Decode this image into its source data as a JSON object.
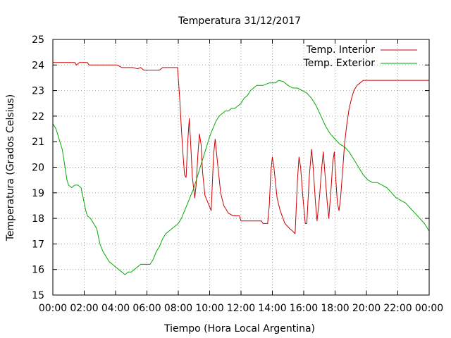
{
  "chart_data": {
    "type": "line",
    "title": "Temperatura 31/12/2017",
    "xlabel": "Tiempo (Hora Local Argentina)",
    "ylabel": "Temperatura (Grados Celsius)",
    "xlim": [
      0,
      24
    ],
    "ylim": [
      15,
      25
    ],
    "grid": true,
    "legend_position": "top-right",
    "x_ticks": [
      "00:00",
      "02:00",
      "04:00",
      "06:00",
      "08:00",
      "10:00",
      "12:00",
      "14:00",
      "16:00",
      "18:00",
      "20:00",
      "22:00",
      "00:00"
    ],
    "y_ticks": [
      "15",
      "16",
      "17",
      "18",
      "19",
      "20",
      "21",
      "22",
      "23",
      "24",
      "25"
    ],
    "series": [
      {
        "name": "Temp. Interior",
        "color": "#cc0000",
        "points": [
          [
            0,
            24.1
          ],
          [
            1.4,
            24.1
          ],
          [
            1.5,
            24.0
          ],
          [
            1.7,
            24.1
          ],
          [
            2.2,
            24.1
          ],
          [
            2.3,
            24.0
          ],
          [
            4.1,
            24.0
          ],
          [
            4.4,
            23.9
          ],
          [
            5.1,
            23.9
          ],
          [
            5.4,
            23.85
          ],
          [
            5.6,
            23.9
          ],
          [
            5.8,
            23.8
          ],
          [
            6.8,
            23.8
          ],
          [
            7.0,
            23.9
          ],
          [
            7.7,
            23.9
          ],
          [
            7.95,
            23.9
          ],
          [
            8.0,
            23.5
          ],
          [
            8.1,
            22.6
          ],
          [
            8.2,
            21.5
          ],
          [
            8.3,
            20.5
          ],
          [
            8.4,
            19.7
          ],
          [
            8.5,
            19.6
          ],
          [
            8.6,
            21.0
          ],
          [
            8.7,
            21.9
          ],
          [
            8.8,
            20.8
          ],
          [
            8.9,
            19.6
          ],
          [
            9.05,
            18.8
          ],
          [
            9.15,
            19.4
          ],
          [
            9.25,
            20.5
          ],
          [
            9.35,
            21.3
          ],
          [
            9.45,
            20.9
          ],
          [
            9.55,
            19.8
          ],
          [
            9.7,
            18.9
          ],
          [
            9.9,
            18.6
          ],
          [
            10.1,
            18.3
          ],
          [
            10.25,
            20.5
          ],
          [
            10.35,
            21.1
          ],
          [
            10.5,
            20.2
          ],
          [
            10.7,
            19.0
          ],
          [
            10.9,
            18.5
          ],
          [
            11.2,
            18.2
          ],
          [
            11.5,
            18.1
          ],
          [
            11.9,
            18.1
          ],
          [
            12.0,
            17.9
          ],
          [
            13.3,
            17.9
          ],
          [
            13.4,
            17.8
          ],
          [
            13.7,
            17.8
          ],
          [
            13.8,
            18.5
          ],
          [
            13.9,
            19.8
          ],
          [
            14.0,
            20.4
          ],
          [
            14.1,
            20.0
          ],
          [
            14.3,
            18.8
          ],
          [
            14.5,
            18.3
          ],
          [
            14.8,
            17.8
          ],
          [
            15.1,
            17.6
          ],
          [
            15.3,
            17.5
          ],
          [
            15.45,
            17.4
          ],
          [
            15.6,
            19.5
          ],
          [
            15.7,
            20.4
          ],
          [
            15.8,
            20.0
          ],
          [
            15.95,
            18.8
          ],
          [
            16.1,
            17.8
          ],
          [
            16.2,
            17.8
          ],
          [
            16.35,
            19.6
          ],
          [
            16.5,
            20.7
          ],
          [
            16.6,
            20.0
          ],
          [
            16.75,
            18.6
          ],
          [
            16.85,
            17.9
          ],
          [
            17.0,
            18.8
          ],
          [
            17.15,
            20.0
          ],
          [
            17.25,
            20.6
          ],
          [
            17.35,
            19.8
          ],
          [
            17.5,
            18.6
          ],
          [
            17.6,
            18.0
          ],
          [
            17.75,
            19.2
          ],
          [
            17.85,
            20.2
          ],
          [
            17.95,
            20.6
          ],
          [
            18.05,
            19.5
          ],
          [
            18.15,
            18.6
          ],
          [
            18.25,
            18.3
          ],
          [
            18.35,
            18.8
          ],
          [
            18.5,
            20.0
          ],
          [
            18.6,
            20.9
          ],
          [
            18.75,
            21.7
          ],
          [
            18.9,
            22.3
          ],
          [
            19.05,
            22.7
          ],
          [
            19.2,
            23.0
          ],
          [
            19.4,
            23.2
          ],
          [
            19.6,
            23.3
          ],
          [
            19.8,
            23.4
          ],
          [
            20.0,
            23.4
          ],
          [
            24.0,
            23.4
          ]
        ]
      },
      {
        "name": "Temp. Exterior",
        "color": "#00aa00",
        "points": [
          [
            0,
            21.7
          ],
          [
            0.2,
            21.5
          ],
          [
            0.4,
            21.1
          ],
          [
            0.6,
            20.7
          ],
          [
            0.7,
            20.3
          ],
          [
            0.8,
            19.9
          ],
          [
            0.9,
            19.5
          ],
          [
            1.0,
            19.3
          ],
          [
            1.2,
            19.2
          ],
          [
            1.4,
            19.3
          ],
          [
            1.6,
            19.3
          ],
          [
            1.8,
            19.2
          ],
          [
            1.9,
            18.9
          ],
          [
            2.0,
            18.6
          ],
          [
            2.1,
            18.3
          ],
          [
            2.2,
            18.1
          ],
          [
            2.4,
            18.0
          ],
          [
            2.6,
            17.8
          ],
          [
            2.8,
            17.6
          ],
          [
            2.9,
            17.3
          ],
          [
            3.0,
            17.0
          ],
          [
            3.2,
            16.7
          ],
          [
            3.4,
            16.5
          ],
          [
            3.6,
            16.3
          ],
          [
            3.8,
            16.2
          ],
          [
            4.0,
            16.1
          ],
          [
            4.2,
            16.0
          ],
          [
            4.4,
            15.9
          ],
          [
            4.6,
            15.8
          ],
          [
            4.8,
            15.9
          ],
          [
            5.0,
            15.9
          ],
          [
            5.2,
            16.0
          ],
          [
            5.4,
            16.1
          ],
          [
            5.6,
            16.2
          ],
          [
            6.0,
            16.2
          ],
          [
            6.2,
            16.2
          ],
          [
            6.4,
            16.4
          ],
          [
            6.6,
            16.7
          ],
          [
            6.8,
            16.9
          ],
          [
            7.0,
            17.2
          ],
          [
            7.2,
            17.4
          ],
          [
            7.4,
            17.5
          ],
          [
            7.6,
            17.6
          ],
          [
            7.8,
            17.7
          ],
          [
            8.0,
            17.8
          ],
          [
            8.2,
            18.0
          ],
          [
            8.4,
            18.3
          ],
          [
            8.6,
            18.6
          ],
          [
            8.8,
            18.9
          ],
          [
            9.0,
            19.2
          ],
          [
            9.2,
            19.6
          ],
          [
            9.4,
            20.0
          ],
          [
            9.6,
            20.4
          ],
          [
            9.8,
            20.8
          ],
          [
            10.0,
            21.2
          ],
          [
            10.2,
            21.5
          ],
          [
            10.4,
            21.8
          ],
          [
            10.6,
            22.0
          ],
          [
            10.8,
            22.1
          ],
          [
            11.0,
            22.2
          ],
          [
            11.2,
            22.2
          ],
          [
            11.4,
            22.3
          ],
          [
            11.6,
            22.3
          ],
          [
            11.8,
            22.4
          ],
          [
            12.0,
            22.5
          ],
          [
            12.2,
            22.7
          ],
          [
            12.4,
            22.8
          ],
          [
            12.6,
            23.0
          ],
          [
            12.8,
            23.1
          ],
          [
            13.0,
            23.2
          ],
          [
            13.4,
            23.2
          ],
          [
            13.8,
            23.3
          ],
          [
            14.2,
            23.3
          ],
          [
            14.4,
            23.4
          ],
          [
            14.7,
            23.35
          ],
          [
            15.0,
            23.2
          ],
          [
            15.3,
            23.1
          ],
          [
            15.6,
            23.1
          ],
          [
            15.9,
            23.0
          ],
          [
            16.2,
            22.9
          ],
          [
            16.5,
            22.7
          ],
          [
            16.8,
            22.4
          ],
          [
            17.1,
            22.0
          ],
          [
            17.4,
            21.6
          ],
          [
            17.7,
            21.3
          ],
          [
            18.0,
            21.1
          ],
          [
            18.3,
            20.9
          ],
          [
            18.6,
            20.8
          ],
          [
            18.9,
            20.6
          ],
          [
            19.2,
            20.3
          ],
          [
            19.5,
            20.0
          ],
          [
            19.8,
            19.7
          ],
          [
            20.1,
            19.5
          ],
          [
            20.4,
            19.4
          ],
          [
            20.7,
            19.4
          ],
          [
            21.0,
            19.3
          ],
          [
            21.3,
            19.2
          ],
          [
            21.6,
            19.0
          ],
          [
            21.9,
            18.8
          ],
          [
            22.2,
            18.7
          ],
          [
            22.5,
            18.6
          ],
          [
            22.8,
            18.4
          ],
          [
            23.1,
            18.2
          ],
          [
            23.4,
            18.0
          ],
          [
            23.7,
            17.8
          ],
          [
            24.0,
            17.5
          ]
        ]
      }
    ]
  }
}
